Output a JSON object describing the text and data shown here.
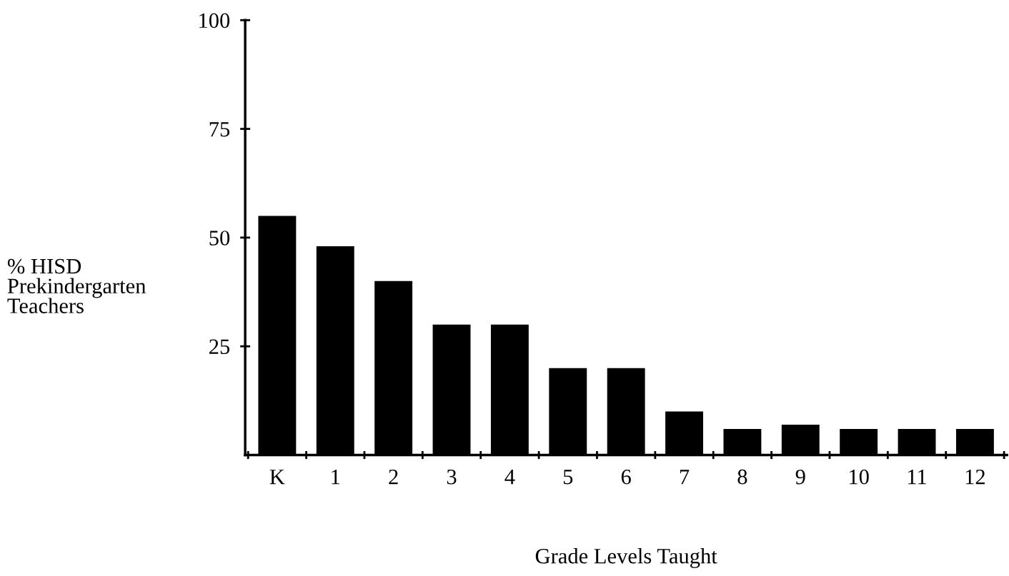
{
  "chart_data": {
    "type": "bar",
    "xlabel": "Grade Levels Taught",
    "ylabel": "% HISD\nPrekindergarten\nTeachers",
    "categories": [
      "K",
      "1",
      "2",
      "3",
      "4",
      "5",
      "6",
      "7",
      "8",
      "9",
      "10",
      "11",
      "12"
    ],
    "values": [
      55,
      48,
      40,
      30,
      30,
      20,
      20,
      10,
      6,
      7,
      6,
      6,
      6
    ],
    "color": "#000000",
    "ylim": [
      0,
      100
    ],
    "yticks": [
      25,
      50,
      75,
      100
    ],
    "grid": false,
    "legend": false
  }
}
